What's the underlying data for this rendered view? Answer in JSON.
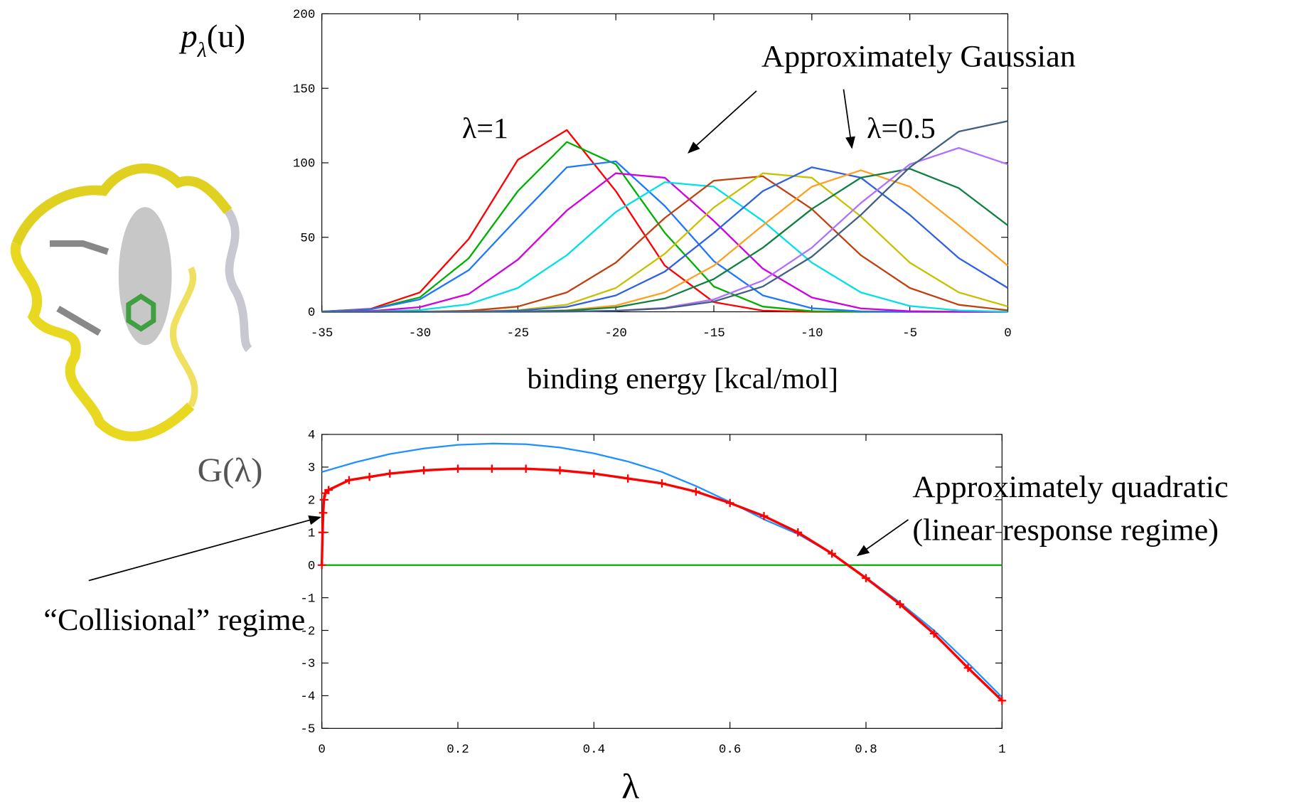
{
  "chart_data": [
    {
      "type": "line",
      "ylabel": [
        "p",
        "λ",
        "(u)"
      ],
      "xlabel": "binding energy [kcal/mol]",
      "xlim": [
        -35,
        0
      ],
      "ylim": [
        0,
        200
      ],
      "xticks": [
        -35,
        -30,
        -25,
        -20,
        -15,
        -10,
        -5,
        0
      ],
      "yticks": [
        0,
        50,
        100,
        150,
        200
      ],
      "annotations": [
        "Approximately Gaussian",
        "λ=1",
        "λ=0.5"
      ],
      "x": [
        -35,
        -32.5,
        -30,
        -27.5,
        -25,
        -22.5,
        -20,
        -17.5,
        -15,
        -12.5,
        -10,
        -7.5,
        -5,
        -2.5,
        0
      ],
      "series": [
        {
          "color": "#ff0000",
          "values": [
            0.2,
            2,
            13,
            49,
            102,
            122,
            81,
            31,
            6.5,
            0.8,
            0,
            0,
            0,
            0,
            0
          ]
        },
        {
          "color": "#00b000",
          "values": [
            0.2,
            1.6,
            9.7,
            36,
            81,
            114,
            99,
            53,
            17,
            3.5,
            0.4,
            0,
            0,
            0,
            0
          ]
        },
        {
          "color": "#1e78ff",
          "values": [
            0.2,
            1.7,
            8.3,
            28,
            63,
            97,
            101,
            71,
            34,
            11,
            2.4,
            0.3,
            0,
            0,
            0
          ]
        },
        {
          "color": "#d000e0",
          "values": [
            0.1,
            0.5,
            3.1,
            12,
            35,
            68,
            93,
            90,
            61,
            29,
            9.6,
            2.3,
            0.4,
            0,
            0
          ]
        },
        {
          "color": "#00e0e8",
          "values": [
            0,
            0.2,
            1.2,
            5.1,
            16,
            38,
            67,
            87,
            84,
            61,
            33,
            13,
            3.9,
            0.9,
            0.1
          ]
        },
        {
          "color": "#c04010",
          "values": [
            0,
            0,
            0.1,
            0.7,
            3.5,
            13,
            33,
            63,
            88,
            91,
            69,
            38,
            16,
            4.7,
            1
          ]
        },
        {
          "color": "#c8c000",
          "values": [
            0,
            0,
            0,
            0.2,
            1.1,
            4.8,
            16,
            39,
            70,
            93,
            90,
            64,
            33,
            13,
            3.6
          ]
        },
        {
          "color": "#3060e0",
          "values": [
            0,
            0,
            0,
            0.1,
            0.8,
            3.3,
            11,
            27,
            53,
            81,
            97,
            90,
            65,
            36,
            16
          ]
        },
        {
          "color": "#ffa020",
          "values": [
            0,
            0,
            0,
            0,
            0.2,
            1.1,
            4.2,
            13,
            31,
            58,
            84,
            95,
            84,
            58,
            31
          ]
        },
        {
          "color": "#108040",
          "values": [
            0,
            0,
            0,
            0,
            0.2,
            0.8,
            3,
            8.9,
            22,
            43,
            69,
            90,
            96,
            83,
            58
          ]
        },
        {
          "color": "#b070ff",
          "values": [
            0,
            0,
            0,
            0,
            0,
            0.1,
            0.7,
            2.7,
            8.3,
            21,
            43,
            73,
            99,
            110,
            99
          ]
        },
        {
          "color": "#406080",
          "values": [
            0,
            0,
            0,
            0,
            0,
            0.2,
            0.7,
            2.3,
            6.9,
            17,
            37,
            65,
            97,
            121,
            128
          ]
        }
      ]
    },
    {
      "type": "line",
      "ylabel": "G(λ)",
      "xlabel": "λ",
      "xlim": [
        0,
        1
      ],
      "ylim": [
        -5,
        4
      ],
      "xticks": [
        0,
        0.2,
        0.4,
        0.6,
        0.8,
        1
      ],
      "yticks": [
        -5,
        -4,
        -3,
        -2,
        -1,
        0,
        1,
        2,
        3,
        4
      ],
      "annotations": [
        "Approximately quadratic",
        "(linear response regime)",
        "“Collisional” regime"
      ],
      "series": [
        {
          "color": "#00b000",
          "x": [
            0,
            1
          ],
          "values": [
            0,
            0
          ]
        },
        {
          "color": "#1e90ff",
          "x": [
            0,
            0.05,
            0.1,
            0.15,
            0.2,
            0.25,
            0.3,
            0.35,
            0.4,
            0.45,
            0.5,
            0.55,
            0.6,
            0.65,
            0.7,
            0.75,
            0.8,
            0.85,
            0.9,
            0.95,
            1
          ],
          "values": [
            2.85,
            3.15,
            3.4,
            3.57,
            3.68,
            3.72,
            3.7,
            3.6,
            3.42,
            3.17,
            2.85,
            2.42,
            1.93,
            1.4,
            0.95,
            0.35,
            -0.38,
            -1.15,
            -2.0,
            -3.0,
            -4.05
          ]
        },
        {
          "color": "#ff0000",
          "marker": "+",
          "x": [
            0,
            0.001,
            0.002,
            0.003,
            0.005,
            0.01,
            0.04,
            0.07,
            0.1,
            0.15,
            0.2,
            0.25,
            0.3,
            0.35,
            0.4,
            0.45,
            0.5,
            0.55,
            0.6,
            0.65,
            0.7,
            0.75,
            0.8,
            0.85,
            0.9,
            0.95,
            1
          ],
          "values": [
            0,
            1,
            1.6,
            2.0,
            2.2,
            2.3,
            2.6,
            2.7,
            2.8,
            2.9,
            2.95,
            2.95,
            2.95,
            2.9,
            2.8,
            2.65,
            2.5,
            2.25,
            1.9,
            1.5,
            1.0,
            0.35,
            -0.4,
            -1.2,
            -2.1,
            -3.15,
            -4.15
          ]
        }
      ]
    }
  ]
}
